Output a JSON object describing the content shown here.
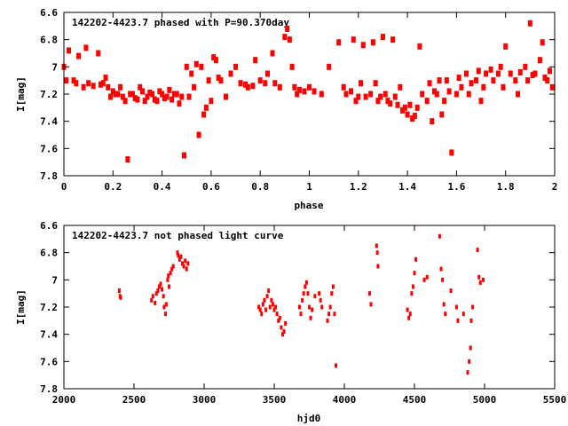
{
  "chart_data": [
    {
      "type": "scatter",
      "title": "142202-4423.7 phased with P=90.370day",
      "xlabel": "phase",
      "ylabel": "I[mag]",
      "xlim": [
        0,
        2
      ],
      "ylim": [
        6.6,
        7.8
      ],
      "y_inverted": true,
      "xticks": [
        "0",
        "0.2",
        "0.4",
        "0.6",
        "0.8",
        "1",
        "1.2",
        "1.4",
        "1.6",
        "1.8",
        "2"
      ],
      "xtick_values": [
        0,
        0.2,
        0.4,
        0.6,
        0.8,
        1,
        1.2,
        1.4,
        1.6,
        1.8,
        2
      ],
      "yticks": [
        "6.6",
        "6.8",
        "7",
        "7.2",
        "7.4",
        "7.6",
        "7.8"
      ],
      "ytick_values": [
        6.6,
        6.8,
        7.0,
        7.2,
        7.4,
        7.6,
        7.8
      ],
      "color": "#ff0000",
      "grid": false,
      "points": [
        [
          0.0,
          7.0
        ],
        [
          0.01,
          7.1
        ],
        [
          0.02,
          6.88
        ],
        [
          0.04,
          7.1
        ],
        [
          0.05,
          7.12
        ],
        [
          0.06,
          6.92
        ],
        [
          0.08,
          7.15
        ],
        [
          0.09,
          6.86
        ],
        [
          0.1,
          7.12
        ],
        [
          0.12,
          7.14
        ],
        [
          0.14,
          6.9
        ],
        [
          0.15,
          7.13
        ],
        [
          0.16,
          7.12
        ],
        [
          0.17,
          7.08
        ],
        [
          0.18,
          7.15
        ],
        [
          0.19,
          7.22
        ],
        [
          0.2,
          7.18
        ],
        [
          0.21,
          7.2
        ],
        [
          0.22,
          7.2
        ],
        [
          0.23,
          7.15
        ],
        [
          0.24,
          7.22
        ],
        [
          0.25,
          7.25
        ],
        [
          0.26,
          7.68
        ],
        [
          0.27,
          7.2
        ],
        [
          0.28,
          7.2
        ],
        [
          0.29,
          7.23
        ],
        [
          0.3,
          7.24
        ],
        [
          0.31,
          7.15
        ],
        [
          0.32,
          7.18
        ],
        [
          0.33,
          7.25
        ],
        [
          0.34,
          7.22
        ],
        [
          0.35,
          7.19
        ],
        [
          0.36,
          7.2
        ],
        [
          0.37,
          7.24
        ],
        [
          0.38,
          7.25
        ],
        [
          0.39,
          7.18
        ],
        [
          0.4,
          7.2
        ],
        [
          0.41,
          7.23
        ],
        [
          0.42,
          7.22
        ],
        [
          0.43,
          7.17
        ],
        [
          0.44,
          7.24
        ],
        [
          0.45,
          7.2
        ],
        [
          0.46,
          7.2
        ],
        [
          0.47,
          7.27
        ],
        [
          0.48,
          7.22
        ],
        [
          0.49,
          7.65
        ],
        [
          0.5,
          7.0
        ],
        [
          0.51,
          7.22
        ],
        [
          0.52,
          7.05
        ],
        [
          0.53,
          7.15
        ],
        [
          0.54,
          6.98
        ],
        [
          0.55,
          7.5
        ],
        [
          0.56,
          7.0
        ],
        [
          0.57,
          7.35
        ],
        [
          0.58,
          7.3
        ],
        [
          0.59,
          7.1
        ],
        [
          0.6,
          7.25
        ],
        [
          0.61,
          6.93
        ],
        [
          0.62,
          6.95
        ],
        [
          0.63,
          7.08
        ],
        [
          0.64,
          7.1
        ],
        [
          0.66,
          7.22
        ],
        [
          0.68,
          7.05
        ],
        [
          0.7,
          7.0
        ],
        [
          0.72,
          7.12
        ],
        [
          0.74,
          7.13
        ],
        [
          0.75,
          7.15
        ],
        [
          0.77,
          7.14
        ],
        [
          0.78,
          6.95
        ],
        [
          0.8,
          7.1
        ],
        [
          0.82,
          7.12
        ],
        [
          0.83,
          7.05
        ],
        [
          0.85,
          6.9
        ],
        [
          0.86,
          7.12
        ],
        [
          0.88,
          7.15
        ],
        [
          0.9,
          6.78
        ],
        [
          0.91,
          6.72
        ],
        [
          0.92,
          6.8
        ],
        [
          0.93,
          7.0
        ],
        [
          0.94,
          7.15
        ],
        [
          0.95,
          7.2
        ],
        [
          0.96,
          7.17
        ],
        [
          0.98,
          7.18
        ],
        [
          1.0,
          7.15
        ],
        [
          1.02,
          7.18
        ],
        [
          1.05,
          7.2
        ],
        [
          1.08,
          7.0
        ],
        [
          1.12,
          6.82
        ],
        [
          1.14,
          7.15
        ],
        [
          1.15,
          7.2
        ],
        [
          1.17,
          7.18
        ],
        [
          1.18,
          6.8
        ],
        [
          1.19,
          7.25
        ],
        [
          1.2,
          7.22
        ],
        [
          1.21,
          7.12
        ],
        [
          1.22,
          6.84
        ],
        [
          1.23,
          7.22
        ],
        [
          1.25,
          7.2
        ],
        [
          1.26,
          6.82
        ],
        [
          1.27,
          7.12
        ],
        [
          1.28,
          7.25
        ],
        [
          1.29,
          7.22
        ],
        [
          1.3,
          6.78
        ],
        [
          1.31,
          7.2
        ],
        [
          1.32,
          7.25
        ],
        [
          1.33,
          7.27
        ],
        [
          1.34,
          6.8
        ],
        [
          1.35,
          7.22
        ],
        [
          1.36,
          7.28
        ],
        [
          1.37,
          7.15
        ],
        [
          1.38,
          7.32
        ],
        [
          1.39,
          7.3
        ],
        [
          1.4,
          7.35
        ],
        [
          1.41,
          7.28
        ],
        [
          1.42,
          7.38
        ],
        [
          1.43,
          7.36
        ],
        [
          1.44,
          7.3
        ],
        [
          1.45,
          6.85
        ],
        [
          1.46,
          7.2
        ],
        [
          1.48,
          7.25
        ],
        [
          1.49,
          7.12
        ],
        [
          1.5,
          7.4
        ],
        [
          1.51,
          7.18
        ],
        [
          1.52,
          7.2
        ],
        [
          1.53,
          7.1
        ],
        [
          1.54,
          7.35
        ],
        [
          1.55,
          7.25
        ],
        [
          1.56,
          7.1
        ],
        [
          1.57,
          7.18
        ],
        [
          1.58,
          7.63
        ],
        [
          1.6,
          7.2
        ],
        [
          1.61,
          7.08
        ],
        [
          1.62,
          7.15
        ],
        [
          1.64,
          7.05
        ],
        [
          1.65,
          7.2
        ],
        [
          1.66,
          7.12
        ],
        [
          1.68,
          7.1
        ],
        [
          1.69,
          7.03
        ],
        [
          1.7,
          7.25
        ],
        [
          1.71,
          7.15
        ],
        [
          1.72,
          7.05
        ],
        [
          1.74,
          7.02
        ],
        [
          1.75,
          7.1
        ],
        [
          1.77,
          7.05
        ],
        [
          1.78,
          7.0
        ],
        [
          1.79,
          7.15
        ],
        [
          1.8,
          6.85
        ],
        [
          1.82,
          7.05
        ],
        [
          1.84,
          7.1
        ],
        [
          1.85,
          7.2
        ],
        [
          1.86,
          7.04
        ],
        [
          1.88,
          7.0
        ],
        [
          1.89,
          7.1
        ],
        [
          1.9,
          6.68
        ],
        [
          1.91,
          7.06
        ],
        [
          1.92,
          7.05
        ],
        [
          1.94,
          6.95
        ],
        [
          1.95,
          6.82
        ],
        [
          1.96,
          7.08
        ],
        [
          1.97,
          7.1
        ],
        [
          1.98,
          7.03
        ],
        [
          1.99,
          7.15
        ]
      ]
    },
    {
      "type": "scatter",
      "title": "142202-4423.7 not phased light curve",
      "xlabel": "hjd0",
      "ylabel": "I[mag]",
      "xlim": [
        2000,
        5500
      ],
      "ylim": [
        6.6,
        7.8
      ],
      "y_inverted": true,
      "xticks": [
        "2000",
        "2500",
        "3000",
        "3500",
        "4000",
        "4500",
        "5000",
        "5500"
      ],
      "xtick_values": [
        2000,
        2500,
        3000,
        3500,
        4000,
        4500,
        5000,
        5500
      ],
      "yticks": [
        "6.6",
        "6.8",
        "7",
        "7.2",
        "7.4",
        "7.6",
        "7.8"
      ],
      "ytick_values": [
        6.6,
        6.8,
        7.0,
        7.2,
        7.4,
        7.6,
        7.8
      ],
      "color": "#ff0000",
      "grid": false,
      "points": [
        [
          2395,
          7.08
        ],
        [
          2400,
          7.12
        ],
        [
          2405,
          7.13
        ],
        [
          2625,
          7.15
        ],
        [
          2635,
          7.12
        ],
        [
          2650,
          7.17
        ],
        [
          2660,
          7.1
        ],
        [
          2670,
          7.08
        ],
        [
          2680,
          7.05
        ],
        [
          2690,
          7.03
        ],
        [
          2700,
          7.07
        ],
        [
          2710,
          7.12
        ],
        [
          2715,
          7.2
        ],
        [
          2725,
          7.25
        ],
        [
          2730,
          7.18
        ],
        [
          2740,
          7.0
        ],
        [
          2745,
          6.97
        ],
        [
          2750,
          7.05
        ],
        [
          2760,
          6.95
        ],
        [
          2770,
          6.92
        ],
        [
          2780,
          6.9
        ],
        [
          2810,
          6.8
        ],
        [
          2815,
          6.82
        ],
        [
          2825,
          6.85
        ],
        [
          2835,
          6.83
        ],
        [
          2845,
          6.88
        ],
        [
          2855,
          6.9
        ],
        [
          2865,
          6.86
        ],
        [
          2875,
          6.92
        ],
        [
          2885,
          6.88
        ],
        [
          3390,
          7.2
        ],
        [
          3400,
          7.22
        ],
        [
          3410,
          7.25
        ],
        [
          3420,
          7.18
        ],
        [
          3430,
          7.15
        ],
        [
          3440,
          7.22
        ],
        [
          3450,
          7.12
        ],
        [
          3460,
          7.08
        ],
        [
          3470,
          7.2
        ],
        [
          3480,
          7.15
        ],
        [
          3490,
          7.18
        ],
        [
          3500,
          7.22
        ],
        [
          3510,
          7.2
        ],
        [
          3520,
          7.25
        ],
        [
          3530,
          7.3
        ],
        [
          3540,
          7.28
        ],
        [
          3550,
          7.35
        ],
        [
          3560,
          7.4
        ],
        [
          3570,
          7.38
        ],
        [
          3580,
          7.32
        ],
        [
          3680,
          7.2
        ],
        [
          3690,
          7.25
        ],
        [
          3700,
          7.15
        ],
        [
          3710,
          7.1
        ],
        [
          3720,
          7.05
        ],
        [
          3730,
          7.02
        ],
        [
          3740,
          7.1
        ],
        [
          3750,
          7.2
        ],
        [
          3760,
          7.28
        ],
        [
          3770,
          7.22
        ],
        [
          3790,
          7.12
        ],
        [
          3820,
          7.1
        ],
        [
          3830,
          7.15
        ],
        [
          3840,
          7.2
        ],
        [
          3880,
          7.3
        ],
        [
          3890,
          7.25
        ],
        [
          3900,
          7.2
        ],
        [
          3910,
          7.1
        ],
        [
          3920,
          7.05
        ],
        [
          3930,
          7.25
        ],
        [
          3940,
          7.63
        ],
        [
          4180,
          7.1
        ],
        [
          4190,
          7.18
        ],
        [
          4230,
          6.75
        ],
        [
          4235,
          6.8
        ],
        [
          4240,
          6.9
        ],
        [
          4450,
          7.22
        ],
        [
          4460,
          7.28
        ],
        [
          4470,
          7.25
        ],
        [
          4480,
          7.1
        ],
        [
          4490,
          7.05
        ],
        [
          4500,
          6.95
        ],
        [
          4510,
          6.85
        ],
        [
          4570,
          7.0
        ],
        [
          4590,
          6.98
        ],
        [
          4680,
          6.68
        ],
        [
          4690,
          6.92
        ],
        [
          4700,
          7.0
        ],
        [
          4710,
          7.18
        ],
        [
          4720,
          7.25
        ],
        [
          4760,
          7.08
        ],
        [
          4800,
          7.2
        ],
        [
          4810,
          7.3
        ],
        [
          4850,
          7.25
        ],
        [
          4880,
          7.68
        ],
        [
          4890,
          7.6
        ],
        [
          4900,
          7.5
        ],
        [
          4905,
          7.3
        ],
        [
          4915,
          7.2
        ],
        [
          4950,
          6.78
        ],
        [
          4960,
          6.98
        ],
        [
          4970,
          7.02
        ],
        [
          4990,
          7.0
        ]
      ]
    }
  ]
}
